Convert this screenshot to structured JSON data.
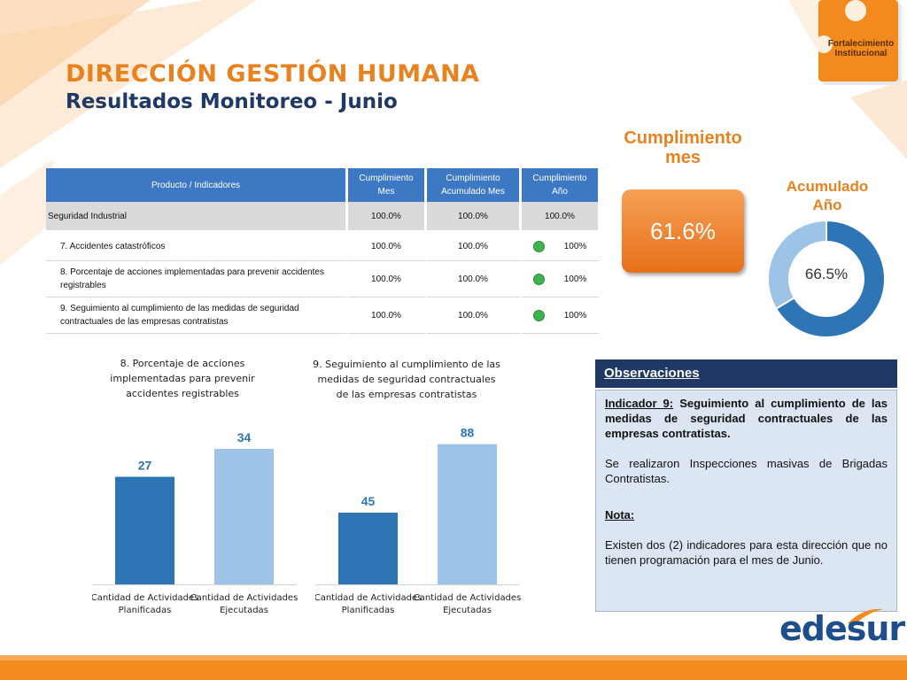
{
  "header": {
    "title": "DIRECCIÓN GESTIÓN HUMANA",
    "subtitle": "Resultados Monitoreo - Junio"
  },
  "badge": {
    "line1": "Fortalecimiento",
    "line2": "Institucional"
  },
  "table": {
    "columns": [
      "Producto / Indicadores",
      "Cumplimiento Mes",
      "Cumplimiento Acumulado Mes",
      "Cumplimiento Año"
    ],
    "group": {
      "name": "Seguridad Industrial",
      "month": "100.0%",
      "cumulative": "100.0%",
      "year": "100.0%"
    },
    "rows": [
      {
        "name": "7. Accidentes catastróficos",
        "month": "100.0%",
        "cumulative": "100.0%",
        "year": "100%",
        "status_color": "#3FB34F"
      },
      {
        "name": "8. Porcentaje de acciones implementadas para prevenir accidentes registrables",
        "month": "100.0%",
        "cumulative": "100.0%",
        "year": "100%",
        "status_color": "#3FB34F"
      },
      {
        "name": "9. Seguimiento al cumplimiento de las medidas de seguridad contractuales de las empresas contratistas",
        "month": "100.0%",
        "cumulative": "100.0%",
        "year": "100%",
        "status_color": "#3FB34F"
      }
    ]
  },
  "kpi": {
    "month_label": "Cumplimiento mes",
    "month_value": "61.6%",
    "year_label": "Acumulado Año",
    "year_value": "66.5%",
    "year_fraction": 0.665
  },
  "observations": {
    "header": "Observaciones",
    "indicator_label": "Indicador 9:",
    "indicator_text": "Seguimiento al cumplimiento de las medidas de seguridad contractuales de las empresas contratistas.",
    "paragraph": "Se realizaron Inspecciones masivas de Brigadas Contratistas.",
    "note_label": "Nota:",
    "note_text": "Existen dos (2) indicadores para esta dirección que no tienen programación para el mes de Junio."
  },
  "logo": {
    "text": "edesur"
  },
  "colors": {
    "accent": "#E8821E",
    "navy": "#1F3864",
    "bar_dark": "#2E75B6",
    "bar_light": "#9DC3E6"
  },
  "chart_data": [
    {
      "type": "bar",
      "title": "8. Porcentaje de acciones implementadas para prevenir accidentes registrables",
      "categories": [
        "Cantidad de Actividades Planificadas",
        "Cantidad de Actividades Ejecutadas"
      ],
      "values": [
        27,
        34
      ],
      "ylim": [
        0,
        40
      ],
      "grid": false
    },
    {
      "type": "bar",
      "title": "9. Seguimiento al cumplimiento de las medidas de seguridad contractuales de las empresas contratistas",
      "categories": [
        "Cantidad de Actividades Planificadas",
        "Cantidad de Actividades Ejecutadas"
      ],
      "values": [
        45,
        88
      ],
      "ylim": [
        0,
        100
      ],
      "grid": false
    }
  ]
}
